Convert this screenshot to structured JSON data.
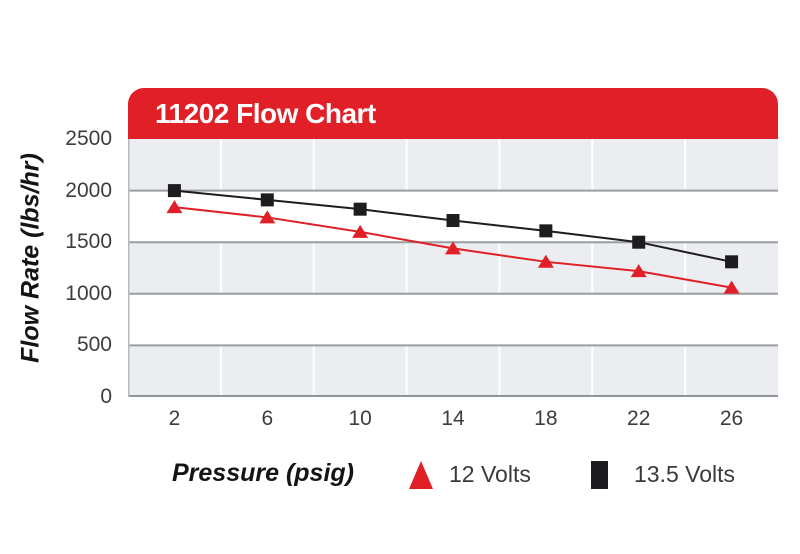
{
  "header": {
    "title": "11202 Flow Chart"
  },
  "colors": {
    "red": "#e01f26",
    "black_series": "#1d1d1f",
    "band_gray": "#ebedf0",
    "gridline": "#9a9ea2",
    "axis_line": "#b6babe",
    "tick_text": "#3d3d3d",
    "banner_text": "#ffffff"
  },
  "chart_data": {
    "type": "line",
    "title": "11202 Flow Chart",
    "xlabel": "Pressure (psig)",
    "ylabel": "Flow Rate (lbs/hr)",
    "categories": [
      "2",
      "6",
      "10",
      "14",
      "18",
      "22",
      "26"
    ],
    "series": [
      {
        "name": "12 Volts",
        "marker": "triangle",
        "color": "#e01f26",
        "values": [
          1840,
          1740,
          1600,
          1440,
          1310,
          1220,
          1060
        ]
      },
      {
        "name": "13.5 Volts",
        "marker": "square",
        "color": "#1d1d1f",
        "values": [
          2000,
          1910,
          1820,
          1710,
          1610,
          1500,
          1310
        ]
      }
    ],
    "ylim": [
      0,
      2500
    ],
    "yticks": [
      2500,
      2000,
      1500,
      1000,
      500,
      0
    ],
    "grid": "horizontal-bands",
    "legend_position": "bottom"
  }
}
